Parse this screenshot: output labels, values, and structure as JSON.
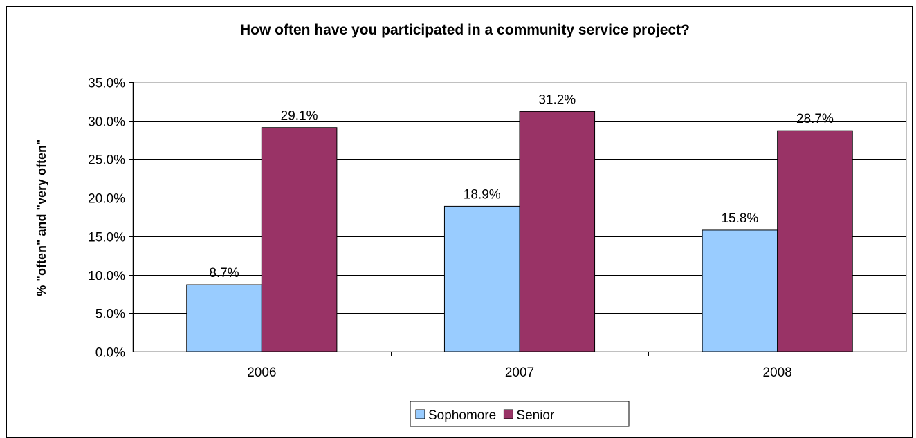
{
  "chart_data": {
    "type": "bar",
    "title": "How often have you participated in a community service project?",
    "xlabel": "",
    "ylabel": "% \"often\" and \"very often\"",
    "categories": [
      "2006",
      "2007",
      "2008"
    ],
    "series": [
      {
        "name": "Sophomore",
        "values": [
          8.7,
          18.9,
          15.8
        ],
        "color": "#99ccff"
      },
      {
        "name": "Senior",
        "values": [
          29.1,
          31.2,
          28.7
        ],
        "color": "#993366"
      }
    ],
    "data_labels": [
      [
        "8.7%",
        "18.9%",
        "15.8%"
      ],
      [
        "29.1%",
        "31.2%",
        "28.7%"
      ]
    ],
    "y_ticks": [
      "0.0%",
      "5.0%",
      "10.0%",
      "15.0%",
      "20.0%",
      "25.0%",
      "30.0%",
      "35.0%"
    ],
    "ylim": [
      0,
      35
    ],
    "grid": true,
    "legend_position": "bottom"
  }
}
